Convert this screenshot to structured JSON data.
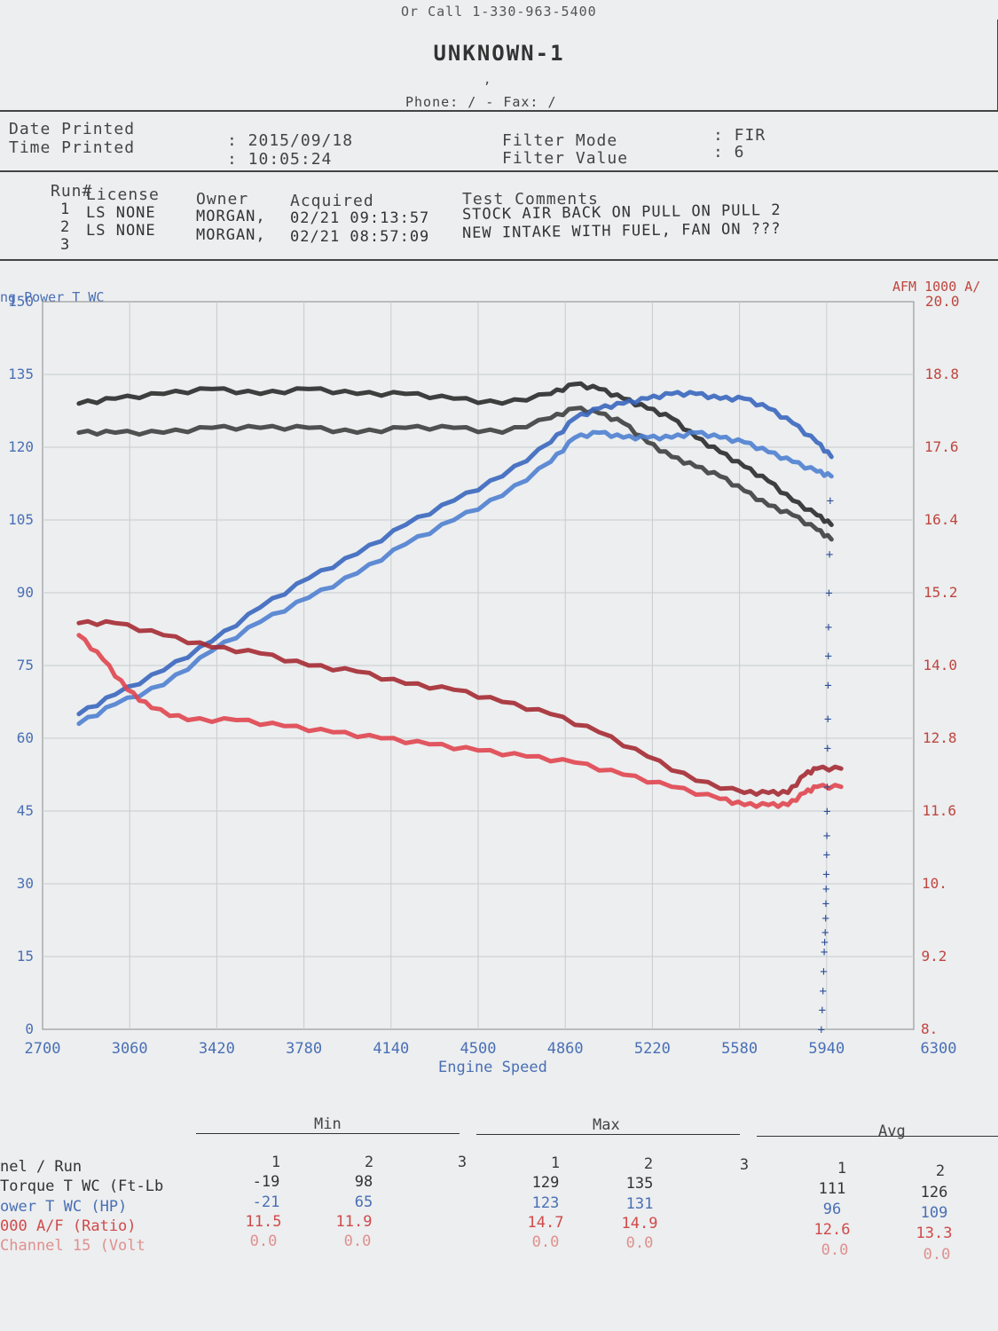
{
  "header": {
    "top_line": "Or Call 1-330-963-5400",
    "title": "UNKNOWN-1",
    "address": ",",
    "phone_line": "Phone:  /  - Fax:  /"
  },
  "print_info": {
    "date_label": "Date Printed",
    "time_label": "Time Printed",
    "date_value": ": 2015/09/18",
    "time_value": ": 10:05:24",
    "filter_mode_label": "Filter Mode",
    "filter_value_label": "Filter Value",
    "filter_mode_value": ": FIR",
    "filter_value_value": ": 6"
  },
  "runs": {
    "headers": [
      "Run#",
      "License",
      "Owner",
      "Acquired",
      "Test Comments"
    ],
    "rows": [
      {
        "num": "1",
        "license": "LS NONE",
        "owner": "MORGAN,",
        "acquired": "02/21 09:13:57",
        "comment": "STOCK AIR BACK ON PULL ON PULL 2"
      },
      {
        "num": "2",
        "license": "LS NONE",
        "owner": "MORGAN,",
        "acquired": "02/21 08:57:09",
        "comment": "NEW INTAKE WITH FUEL, FAN ON ???"
      },
      {
        "num": "3",
        "license": "",
        "owner": "",
        "acquired": "",
        "comment": ""
      }
    ]
  },
  "chart_data": {
    "type": "line",
    "left_axis_label": "ng Power T WC",
    "right_axis_label": "AFM 1000 A/",
    "xlabel": "Engine Speed",
    "xlim": [
      2700,
      6300
    ],
    "x_ticks": [
      "2700",
      "3060",
      "3420",
      "3780",
      "4140",
      "4500",
      "4860",
      "5220",
      "5580",
      "5940",
      "6300"
    ],
    "ylim_left": [
      0,
      150
    ],
    "y_ticks_left": [
      "0",
      "15",
      "30",
      "45",
      "60",
      "75",
      "90",
      "105",
      "120",
      "135",
      "150"
    ],
    "ylim_right": [
      8.0,
      20.0
    ],
    "y_ticks_right": [
      "8.",
      "9.2",
      "10.",
      "11.6",
      "12.8",
      "14.0",
      "15.2",
      "16.4",
      "17.6",
      "18.8",
      "20.0"
    ],
    "grid": true,
    "colors": {
      "torque_run1": "#3e3e3e",
      "torque_run2": "#2a2a2a",
      "power_run1": "#4f7fd0",
      "power_run2": "#3a66be",
      "afr_run1": "#e0454f",
      "afr_run2": "#a52a33",
      "marker": "#2e4f9a"
    },
    "series": [
      {
        "channel": "Torque T WC (Ft-Lb)",
        "run": 1,
        "axis": "left",
        "x": [
          2850,
          3000,
          3200,
          3400,
          3600,
          3800,
          4000,
          4200,
          4400,
          4600,
          4800,
          4900,
          5000,
          5100,
          5200,
          5300,
          5400,
          5500,
          5600,
          5700,
          5800,
          5900,
          5960
        ],
        "y": [
          123,
          123,
          123,
          124,
          124,
          124,
          123,
          124,
          124,
          123,
          126,
          128,
          127,
          125,
          121,
          118,
          116,
          114,
          111,
          108,
          106,
          103,
          101
        ]
      },
      {
        "channel": "Torque T WC (Ft-Lb)",
        "run": 2,
        "axis": "left",
        "x": [
          2850,
          3000,
          3200,
          3400,
          3600,
          3800,
          4000,
          4200,
          4400,
          4600,
          4800,
          4900,
          5000,
          5100,
          5200,
          5300,
          5400,
          5500,
          5600,
          5700,
          5800,
          5900,
          5960
        ],
        "y": [
          129,
          130,
          131,
          132,
          131,
          132,
          131,
          131,
          130,
          129,
          131,
          133,
          132,
          130,
          128,
          126,
          122,
          119,
          116,
          113,
          109,
          106,
          104
        ]
      },
      {
        "channel": "Power T WC (HP)",
        "run": 1,
        "axis": "left",
        "x": [
          2850,
          3000,
          3200,
          3400,
          3600,
          3800,
          4000,
          4200,
          4400,
          4600,
          4800,
          4900,
          5000,
          5100,
          5200,
          5300,
          5400,
          5500,
          5600,
          5700,
          5800,
          5900,
          5960
        ],
        "y": [
          63,
          67,
          71,
          78,
          84,
          89,
          94,
          100,
          105,
          110,
          117,
          122,
          123,
          122,
          122,
          122,
          123,
          122,
          121,
          119,
          117,
          115,
          114
        ]
      },
      {
        "channel": "Power T WC (HP)",
        "run": 2,
        "axis": "left",
        "x": [
          2850,
          3000,
          3200,
          3400,
          3600,
          3800,
          4000,
          4200,
          4400,
          4600,
          4800,
          4900,
          5000,
          5100,
          5200,
          5300,
          5400,
          5500,
          5600,
          5700,
          5800,
          5900,
          5960
        ],
        "y": [
          65,
          69,
          74,
          80,
          87,
          93,
          98,
          104,
          109,
          114,
          121,
          126,
          128,
          129,
          130,
          131,
          131,
          130,
          130,
          128,
          125,
          121,
          118
        ]
      },
      {
        "channel": "AFM 1000 A/F (Ratio)",
        "run": 1,
        "axis": "right",
        "x": [
          2850,
          2950,
          3050,
          3150,
          3300,
          3500,
          3700,
          3900,
          4100,
          4300,
          4500,
          4700,
          4900,
          5100,
          5300,
          5500,
          5600,
          5700,
          5780,
          5850,
          5900,
          6000
        ],
        "y": [
          14.5,
          14.1,
          13.6,
          13.3,
          13.1,
          13.1,
          13.0,
          12.9,
          12.8,
          12.7,
          12.6,
          12.5,
          12.4,
          12.2,
          12.0,
          11.8,
          11.7,
          11.7,
          11.7,
          11.9,
          12.0,
          12.0
        ]
      },
      {
        "channel": "AFM 1000 A/F (Ratio)",
        "run": 2,
        "axis": "right",
        "x": [
          2850,
          3000,
          3200,
          3400,
          3600,
          3800,
          4000,
          4200,
          4400,
          4600,
          4800,
          5000,
          5200,
          5400,
          5600,
          5700,
          5780,
          5850,
          5900,
          6000
        ],
        "y": [
          14.7,
          14.7,
          14.5,
          14.3,
          14.2,
          14.0,
          13.9,
          13.7,
          13.6,
          13.4,
          13.2,
          12.9,
          12.5,
          12.1,
          11.9,
          11.9,
          11.9,
          12.2,
          12.3,
          12.3
        ]
      }
    ],
    "marker_series": {
      "symbol": "+",
      "axis": "left",
      "x": [
        5918,
        5922,
        5925,
        5928,
        5930,
        5932,
        5934,
        5936,
        5937,
        5938,
        5939,
        5940,
        5941,
        5942,
        5943,
        5944,
        5945,
        5946,
        5947,
        5948,
        5950,
        5952,
        5955
      ],
      "y": [
        0,
        4,
        8,
        12,
        16,
        18,
        20,
        23,
        26,
        29,
        32,
        36,
        40,
        45,
        50,
        58,
        64,
        71,
        77,
        83,
        90,
        98,
        109
      ]
    }
  },
  "stats": {
    "group_labels": [
      "Min",
      "Max",
      "Avg"
    ],
    "run_header": {
      "label": "nel / Run",
      "min": [
        "1",
        "2",
        "3"
      ],
      "max": [
        "1",
        "2",
        "3"
      ],
      "avg": [
        "1",
        "2"
      ]
    },
    "rows": [
      {
        "label": "Torque T WC (Ft-Lb",
        "min": [
          "-19",
          "98"
        ],
        "max": [
          "129",
          "135"
        ],
        "avg": [
          "111",
          "126"
        ]
      },
      {
        "label": "ower T WC (HP)",
        "min": [
          "-21",
          "65"
        ],
        "max": [
          "123",
          "131"
        ],
        "avg": [
          "96",
          "109"
        ]
      },
      {
        "label": "000 A/F (Ratio)",
        "min": [
          "11.5",
          "11.9"
        ],
        "max": [
          "14.7",
          "14.9"
        ],
        "avg": [
          "12.6",
          "13.3"
        ]
      },
      {
        "label": " Channel 15 (Volt",
        "min": [
          "0.0",
          "0.0"
        ],
        "max": [
          "0.0",
          "0.0"
        ],
        "avg": [
          "0.0",
          "0.0"
        ]
      }
    ]
  }
}
